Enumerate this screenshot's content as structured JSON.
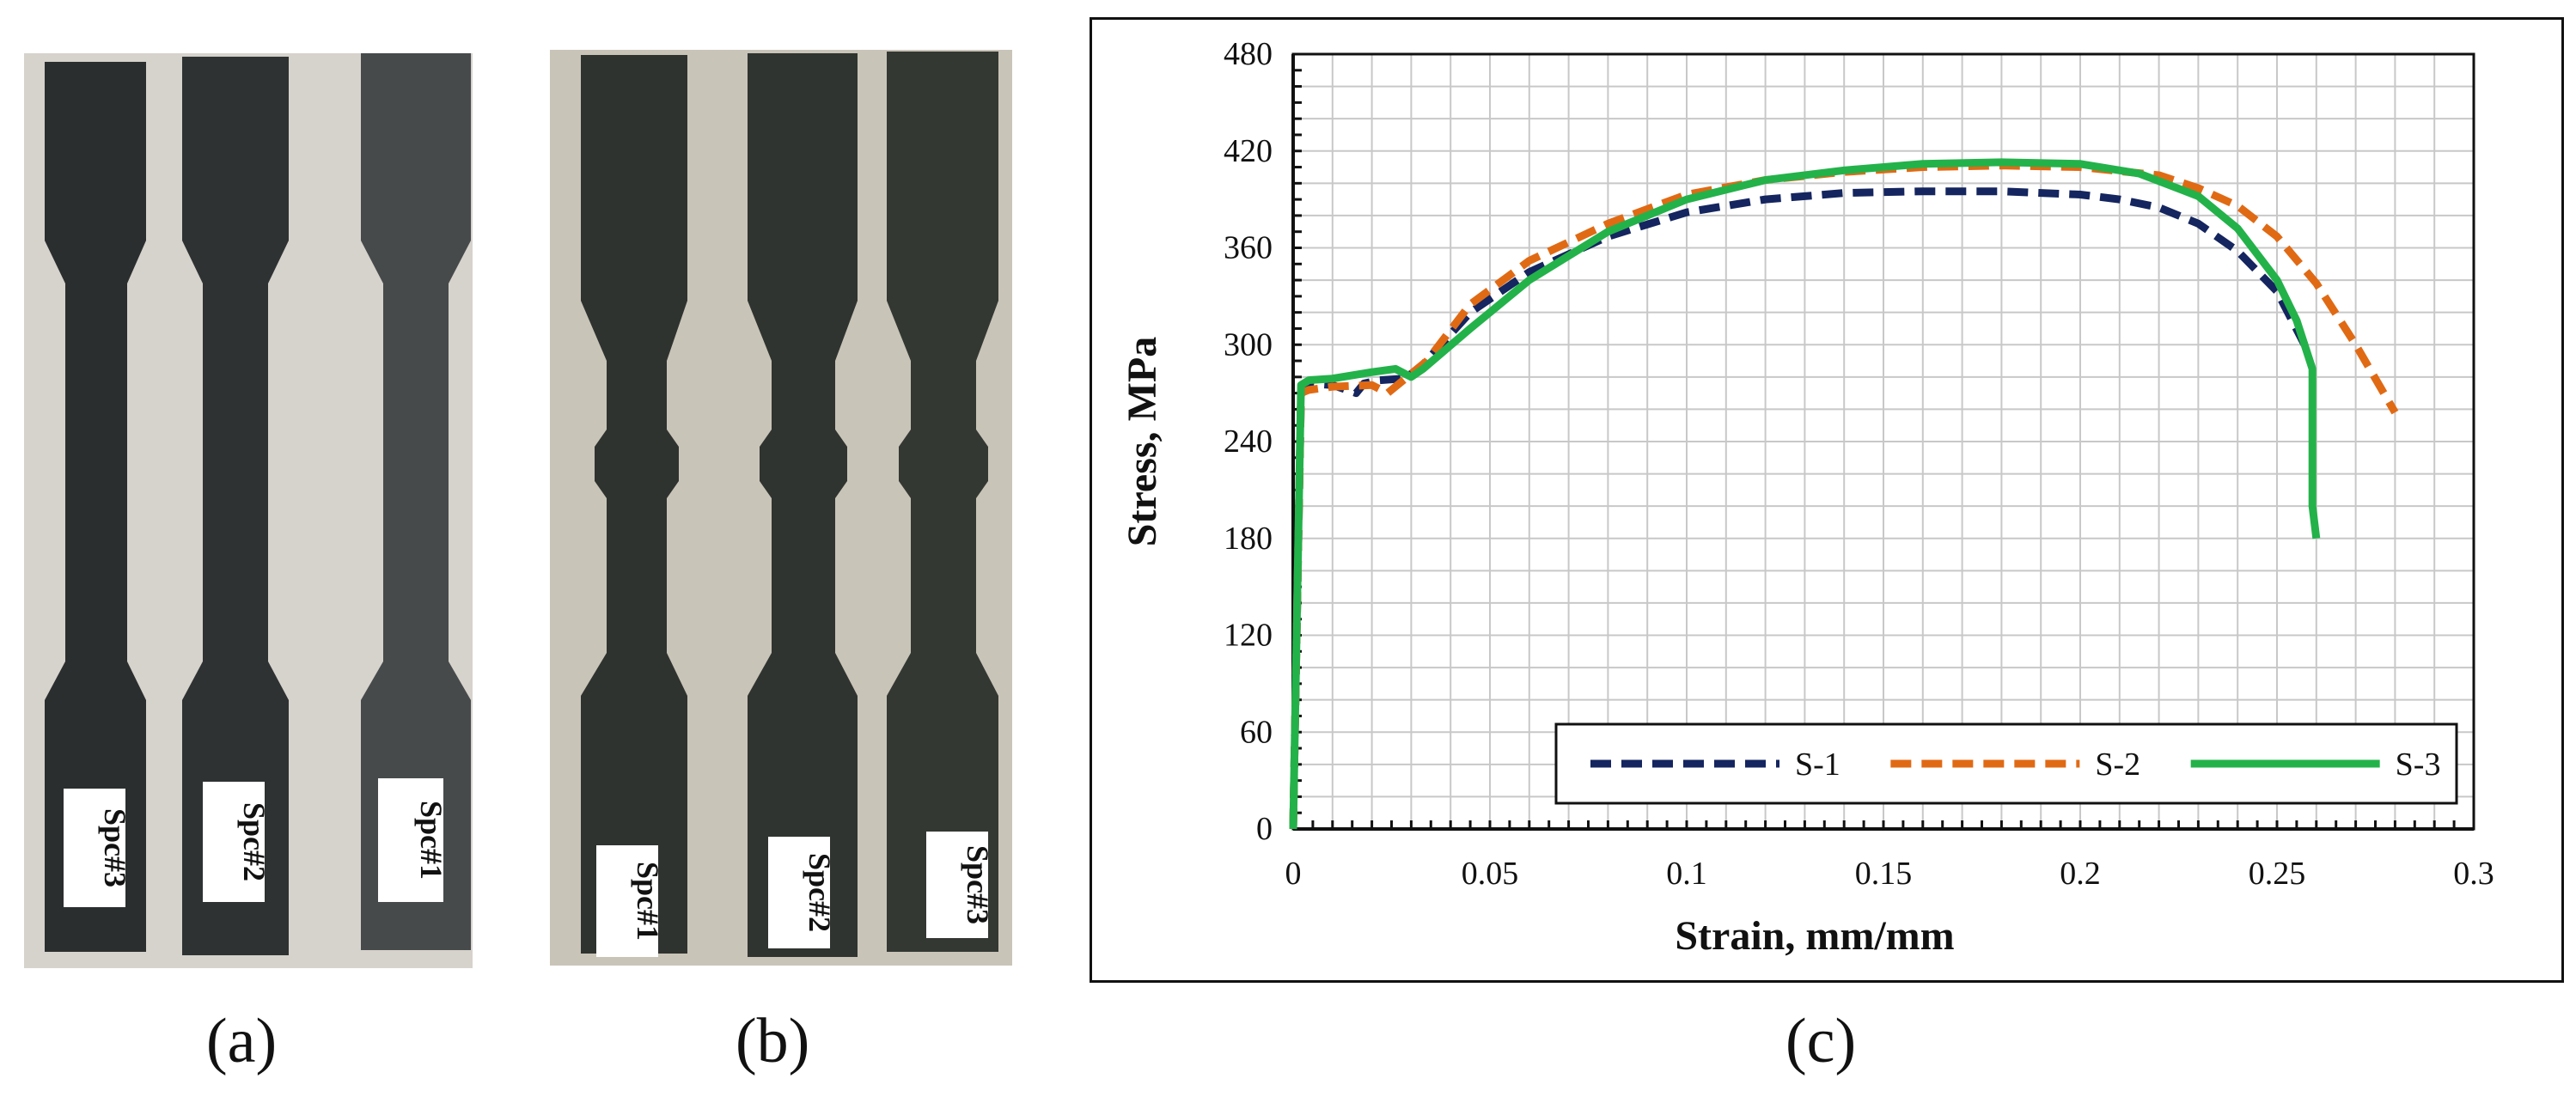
{
  "panel_labels": {
    "a": "(a)",
    "b": "(b)",
    "c": "(c)"
  },
  "photo_a": {
    "tags": [
      "Spc#3",
      "Spc#2",
      "Spc#1"
    ]
  },
  "photo_b": {
    "tags": [
      "Spc#1",
      "Spc#2",
      "Spc#3"
    ]
  },
  "colors": {
    "s1": "#14255f",
    "s2": "#e06a14",
    "s3": "#23b24a",
    "grid": "#c8c8c8"
  },
  "chart_data": {
    "type": "line",
    "title": "",
    "xlabel": "Strain, mm/mm",
    "ylabel": "Stress, MPa",
    "xlim": [
      0,
      0.3
    ],
    "ylim": [
      0,
      480
    ],
    "xticks": [
      0,
      0.05,
      0.1,
      0.15,
      0.2,
      0.25,
      0.3
    ],
    "xtick_labels": [
      "0",
      "0.05",
      "0.1",
      "0.15",
      "0.2",
      "0.25",
      "0.3"
    ],
    "yticks": [
      0,
      60,
      120,
      180,
      240,
      300,
      360,
      420,
      480
    ],
    "ytick_labels": [
      "0",
      "60",
      "120",
      "180",
      "240",
      "300",
      "360",
      "420",
      "480"
    ],
    "grid": true,
    "legend_position": "bottom-right",
    "series": [
      {
        "name": "S-1",
        "style": "dashed",
        "color": "#14255f",
        "x": [
          0,
          0.002,
          0.004,
          0.01,
          0.016,
          0.018,
          0.022,
          0.028,
          0.032,
          0.045,
          0.06,
          0.08,
          0.1,
          0.12,
          0.14,
          0.16,
          0.18,
          0.2,
          0.21,
          0.22,
          0.23,
          0.24,
          0.25,
          0.257
        ],
        "y": [
          0,
          270,
          276,
          275,
          270,
          276,
          278,
          279,
          285,
          320,
          345,
          367,
          382,
          390,
          394,
          395,
          395,
          393,
          390,
          385,
          375,
          358,
          333,
          300
        ]
      },
      {
        "name": "S-2",
        "style": "dashed",
        "color": "#e06a14",
        "x": [
          0,
          0.002,
          0.004,
          0.01,
          0.02,
          0.024,
          0.028,
          0.034,
          0.045,
          0.06,
          0.08,
          0.1,
          0.12,
          0.14,
          0.16,
          0.18,
          0.2,
          0.22,
          0.23,
          0.24,
          0.25,
          0.26,
          0.27,
          0.28
        ],
        "y": [
          0,
          270,
          272,
          274,
          275,
          270,
          278,
          290,
          325,
          352,
          375,
          393,
          402,
          407,
          410,
          411,
          410,
          405,
          397,
          386,
          367,
          338,
          300,
          258
        ]
      },
      {
        "name": "S-3",
        "style": "solid",
        "color": "#23b24a",
        "x": [
          0,
          0.002,
          0.004,
          0.01,
          0.02,
          0.026,
          0.03,
          0.033,
          0.045,
          0.06,
          0.08,
          0.1,
          0.12,
          0.14,
          0.16,
          0.18,
          0.2,
          0.215,
          0.23,
          0.24,
          0.25,
          0.255,
          0.259,
          0.259,
          0.26
        ],
        "y": [
          0,
          275,
          278,
          279,
          283,
          285,
          280,
          285,
          310,
          340,
          370,
          390,
          402,
          408,
          412,
          413,
          412,
          406,
          392,
          372,
          340,
          315,
          285,
          200,
          180
        ]
      }
    ]
  }
}
